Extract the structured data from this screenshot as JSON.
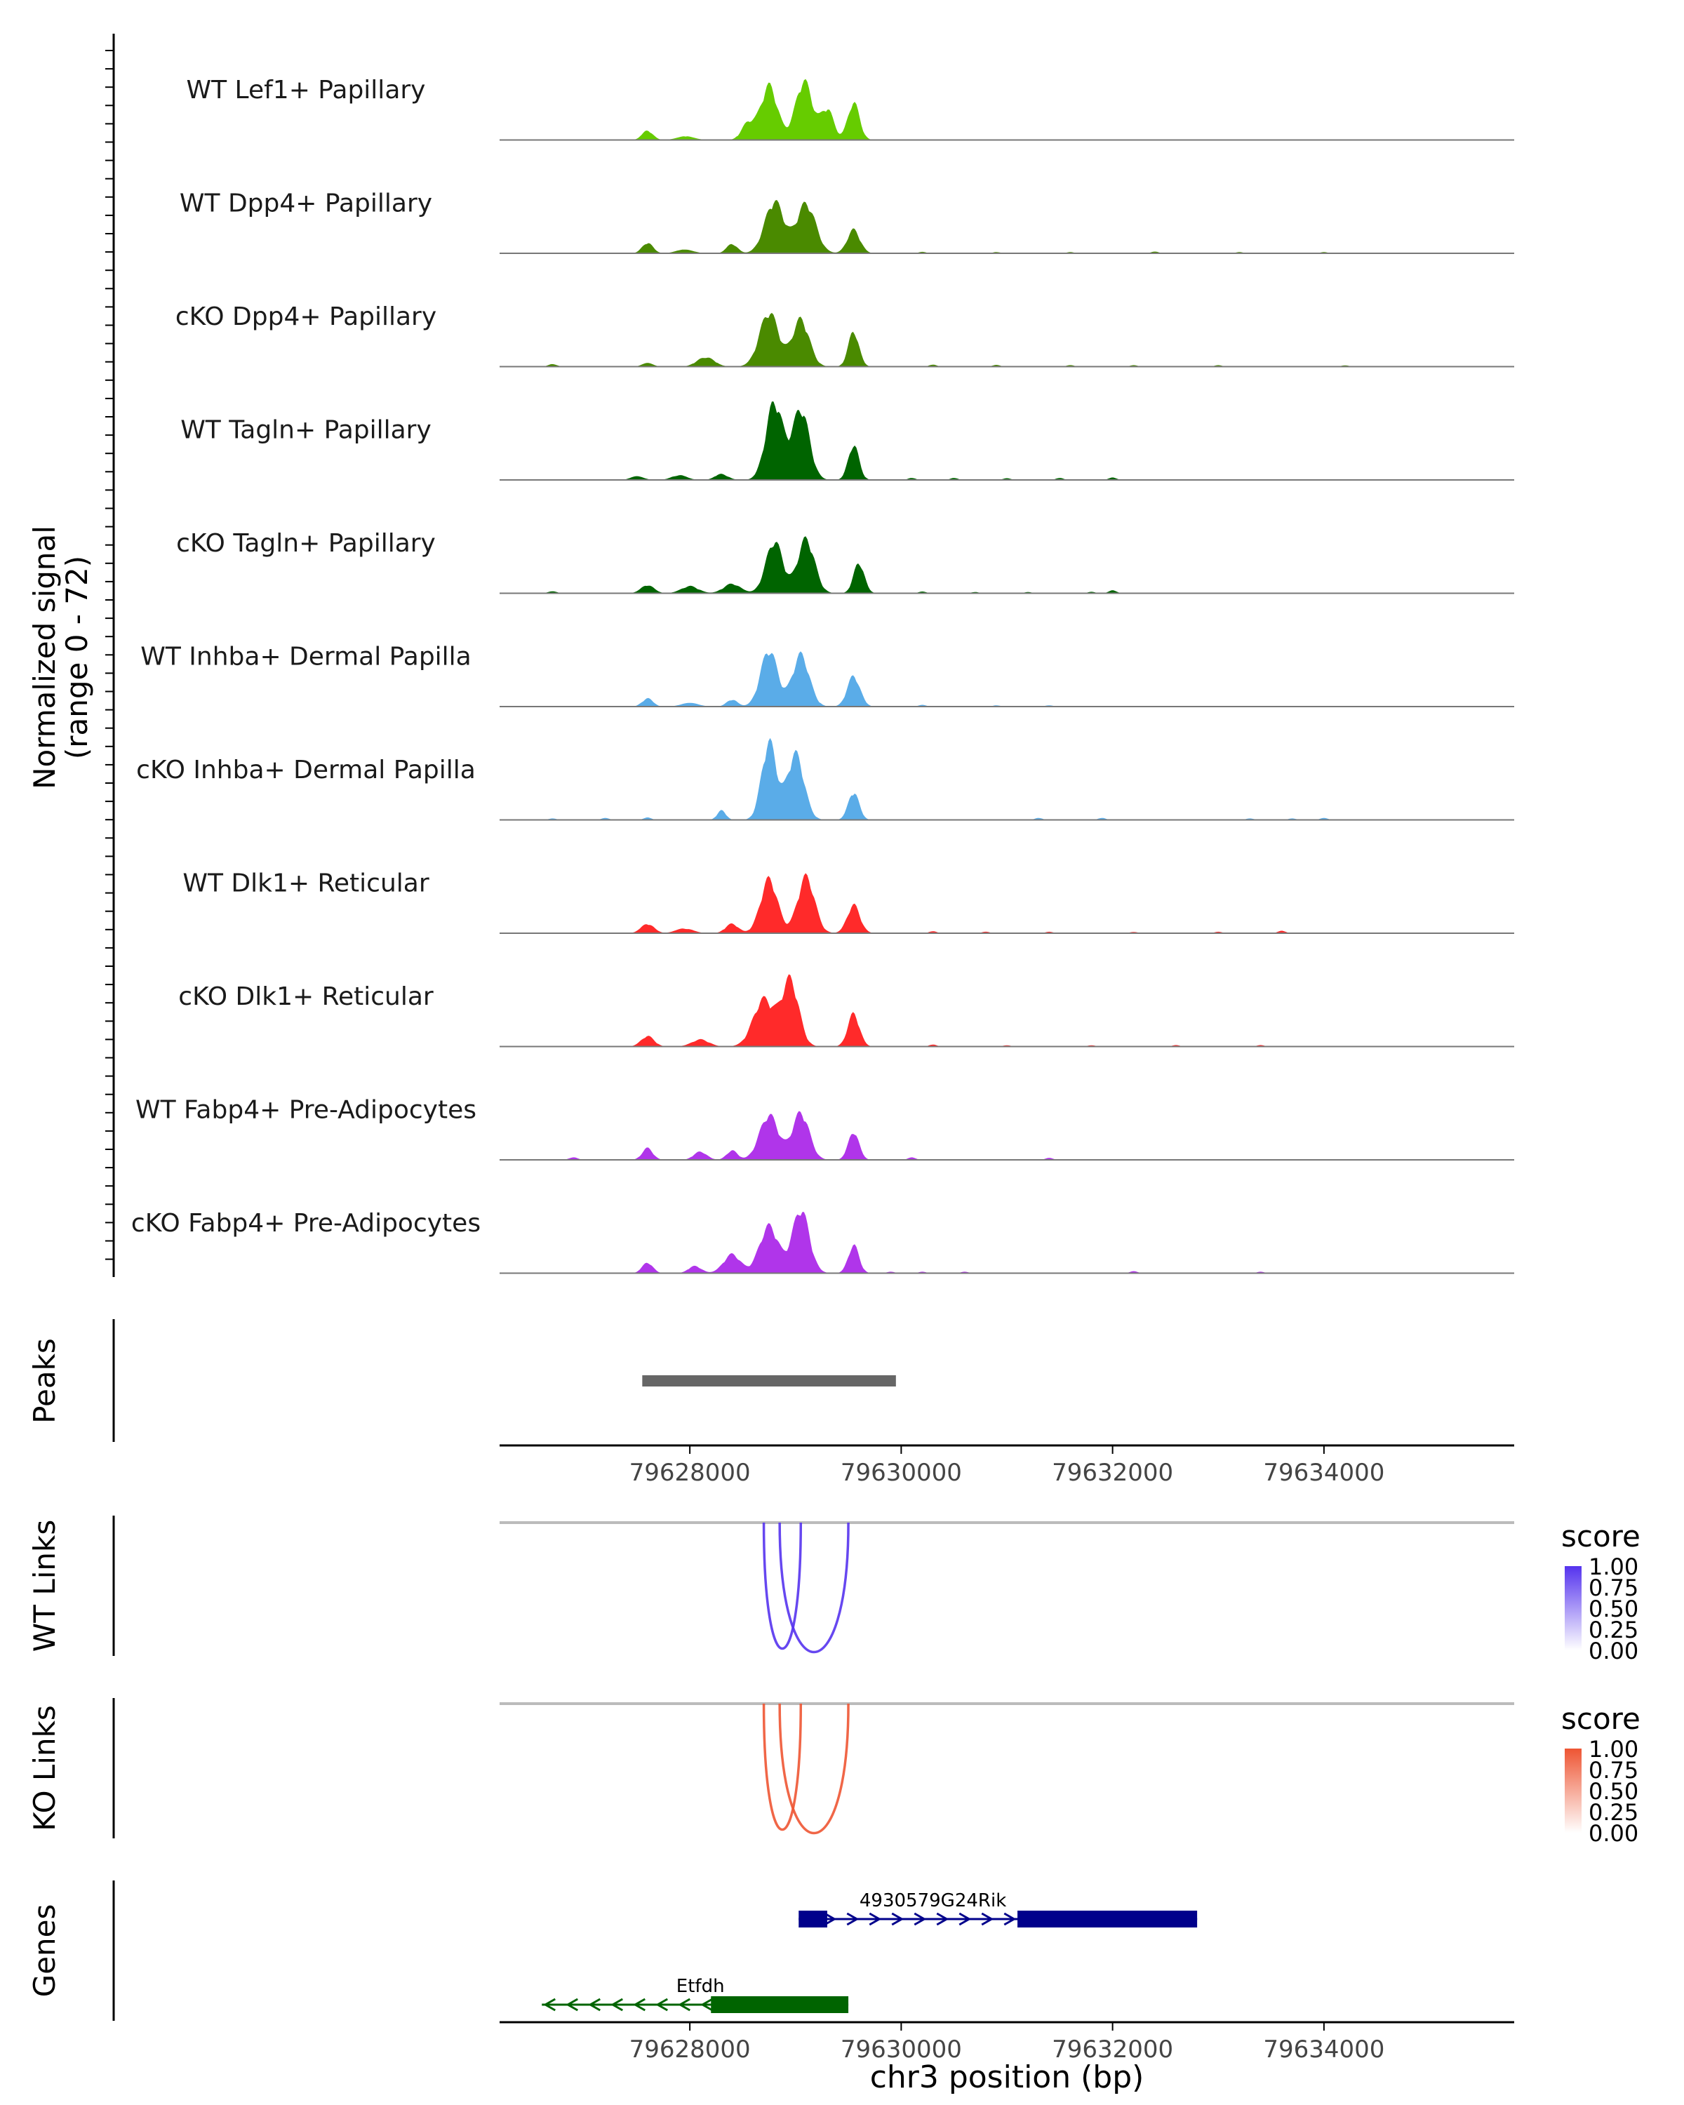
{
  "chart_data": {
    "type": "coverage",
    "title": "",
    "region": "chr3",
    "x_range": [
      79626200,
      79635800
    ],
    "x_ticks": [
      79628000,
      79630000,
      79632000,
      79634000
    ],
    "x_tick_labels": [
      "79628000",
      "79630000",
      "79632000",
      "79634000"
    ],
    "xlabel": "chr3 position (bp)",
    "coverage": {
      "ylabel_line1": "Normalized signal",
      "ylabel_line2": "(range 0 - 72)",
      "y_range": [
        0,
        72
      ],
      "tracks": [
        {
          "name": "WT Lef1+ Papillary",
          "color": "#66cc00",
          "peaks": [
            [
              79627600,
              40,
              50
            ],
            [
              79627960,
              15,
              80
            ],
            [
              79628550,
              70,
              60
            ],
            [
              79628750,
              230,
              80
            ],
            [
              79629080,
              250,
              80
            ],
            [
              79629300,
              130,
              60
            ],
            [
              79629550,
              160,
              55
            ]
          ],
          "blips": []
        },
        {
          "name": "WT Dpp4+ Papillary",
          "color": "#4a8a00",
          "peaks": [
            [
              79627600,
              45,
              50
            ],
            [
              79627950,
              15,
              80
            ],
            [
              79628400,
              40,
              50
            ],
            [
              79628800,
              220,
              90
            ],
            [
              79629100,
              210,
              90
            ],
            [
              79629550,
              100,
              60
            ]
          ],
          "blips": [
            [
              79630200,
              6
            ],
            [
              79630900,
              5
            ],
            [
              79631600,
              5
            ],
            [
              79632400,
              7
            ],
            [
              79633200,
              5
            ],
            [
              79634000,
              5
            ]
          ]
        },
        {
          "name": "cKO Dpp4+ Papillary",
          "color": "#4a8a00",
          "peaks": [
            [
              79626700,
              10,
              40
            ],
            [
              79627600,
              15,
              50
            ],
            [
              79628150,
              40,
              80
            ],
            [
              79628750,
              230,
              90
            ],
            [
              79629050,
              200,
              80
            ],
            [
              79629550,
              150,
              50
            ]
          ],
          "blips": [
            [
              79630300,
              8
            ],
            [
              79630900,
              7
            ],
            [
              79631600,
              6
            ],
            [
              79632200,
              6
            ],
            [
              79633000,
              6
            ],
            [
              79634200,
              5
            ]
          ]
        },
        {
          "name": "WT Tagln+ Papillary",
          "color": "#006400",
          "peaks": [
            [
              79627500,
              15,
              60
            ],
            [
              79627900,
              20,
              70
            ],
            [
              79628300,
              25,
              60
            ],
            [
              79628800,
              330,
              80
            ],
            [
              79629050,
              300,
              80
            ],
            [
              79629550,
              150,
              50
            ]
          ],
          "blips": [
            [
              79630100,
              8
            ],
            [
              79630500,
              8
            ],
            [
              79631000,
              7
            ],
            [
              79631500,
              8
            ],
            [
              79632000,
              10
            ]
          ]
        },
        {
          "name": "cKO Tagln+ Papillary",
          "color": "#006400",
          "peaks": [
            [
              79626700,
              8,
              40
            ],
            [
              79627600,
              35,
              60
            ],
            [
              79628000,
              30,
              80
            ],
            [
              79628400,
              40,
              80
            ],
            [
              79628800,
              220,
              80
            ],
            [
              79629100,
              230,
              80
            ],
            [
              79629600,
              130,
              50
            ]
          ],
          "blips": [
            [
              79630200,
              7
            ],
            [
              79630700,
              5
            ],
            [
              79631200,
              5
            ],
            [
              79631800,
              6
            ],
            [
              79632000,
              12
            ]
          ]
        },
        {
          "name": "WT Inhba+ Dermal Papilla",
          "color": "#5aace8",
          "peaks": [
            [
              79627600,
              35,
              50
            ],
            [
              79628000,
              15,
              80
            ],
            [
              79628400,
              30,
              50
            ],
            [
              79628750,
              240,
              80
            ],
            [
              79629050,
              220,
              80
            ],
            [
              79629550,
              130,
              60
            ]
          ],
          "blips": [
            [
              79630200,
              7
            ],
            [
              79630900,
              5
            ],
            [
              79631400,
              5
            ]
          ]
        },
        {
          "name": "cKO Inhba+ Dermal Papilla",
          "color": "#5aace8",
          "peaks": [
            [
              79628300,
              40,
              40
            ],
            [
              79628750,
              330,
              70
            ],
            [
              79629000,
              280,
              80
            ],
            [
              79629550,
              120,
              50
            ]
          ],
          "blips": [
            [
              79626700,
              6
            ],
            [
              79627200,
              8
            ],
            [
              79627600,
              10
            ],
            [
              79631300,
              8
            ],
            [
              79631900,
              8
            ],
            [
              79633300,
              6
            ],
            [
              79633700,
              6
            ],
            [
              79634000,
              8
            ]
          ]
        },
        {
          "name": "WT Dlk1+ Reticular",
          "color": "#ff2a2a",
          "peaks": [
            [
              79627600,
              40,
              60
            ],
            [
              79627950,
              20,
              80
            ],
            [
              79628400,
              40,
              60
            ],
            [
              79628750,
              230,
              80
            ],
            [
              79629100,
              240,
              80
            ],
            [
              79629550,
              120,
              60
            ]
          ],
          "blips": [
            [
              79630300,
              8
            ],
            [
              79630800,
              6
            ],
            [
              79631400,
              6
            ],
            [
              79632200,
              5
            ],
            [
              79633000,
              6
            ],
            [
              79633600,
              10
            ]
          ]
        },
        {
          "name": "cKO Dlk1+ Reticular",
          "color": "#ff2a2a",
          "peaks": [
            [
              79627600,
              45,
              60
            ],
            [
              79628100,
              30,
              80
            ],
            [
              79628700,
              200,
              100
            ],
            [
              79628950,
              280,
              80
            ],
            [
              79629550,
              140,
              55
            ]
          ],
          "blips": [
            [
              79630300,
              8
            ],
            [
              79631000,
              5
            ],
            [
              79631800,
              5
            ],
            [
              79632600,
              6
            ],
            [
              79633400,
              6
            ]
          ]
        },
        {
          "name": "WT Fabp4+ Pre-Adipocytes",
          "color": "#b035ea",
          "peaks": [
            [
              79626900,
              10,
              40
            ],
            [
              79627600,
              50,
              50
            ],
            [
              79628100,
              35,
              60
            ],
            [
              79628400,
              40,
              50
            ],
            [
              79628750,
              190,
              90
            ],
            [
              79629050,
              200,
              80
            ],
            [
              79629550,
              120,
              50
            ]
          ],
          "blips": [
            [
              79630100,
              10
            ],
            [
              79631400,
              8
            ]
          ]
        },
        {
          "name": "cKO Fabp4+ Pre-Adipocytes",
          "color": "#b035ea",
          "peaks": [
            [
              79627600,
              45,
              50
            ],
            [
              79628050,
              30,
              60
            ],
            [
              79628400,
              80,
              80
            ],
            [
              79628750,
              200,
              90
            ],
            [
              79629050,
              270,
              80
            ],
            [
              79629550,
              120,
              50
            ]
          ],
          "blips": [
            [
              79629900,
              6
            ],
            [
              79630200,
              6
            ],
            [
              79630600,
              6
            ],
            [
              79632200,
              8
            ],
            [
              79633400,
              6
            ]
          ]
        }
      ]
    },
    "peaks_track": {
      "label": "Peaks",
      "color": "#666666",
      "peaks": [
        {
          "start": 79627550,
          "end": 79629950
        }
      ]
    },
    "links_tracks": [
      {
        "label": "WT Links",
        "color": "#5533ee",
        "legend_title": "score",
        "legend_ticks": [
          "1.00",
          "0.75",
          "0.50",
          "0.25",
          "0.00"
        ],
        "arcs": [
          {
            "start": 79628700,
            "end": 79629050,
            "score": 0.9
          },
          {
            "start": 79628850,
            "end": 79629500,
            "score": 0.9
          }
        ]
      },
      {
        "label": "KO Links",
        "color": "#ee5533",
        "legend_title": "score",
        "legend_ticks": [
          "1.00",
          "0.75",
          "0.50",
          "0.25",
          "0.00"
        ],
        "arcs": [
          {
            "start": 79628700,
            "end": 79629050,
            "score": 0.9
          },
          {
            "start": 79628850,
            "end": 79629500,
            "score": 0.9
          }
        ]
      }
    ],
    "genes_track": {
      "label": "Genes",
      "genes": [
        {
          "name": "4930579G24Rik",
          "strand": "+",
          "color": "#00008b",
          "start": 79629030,
          "end": 79632800,
          "exons": [
            [
              79629030,
              79629300
            ],
            [
              79631100,
              79632800
            ]
          ]
        },
        {
          "name": "Etfdh",
          "strand": "-",
          "color": "#006400",
          "start": 79626600,
          "end": 79629500,
          "exons": [
            [
              79628200,
              79629500
            ]
          ]
        }
      ]
    }
  }
}
